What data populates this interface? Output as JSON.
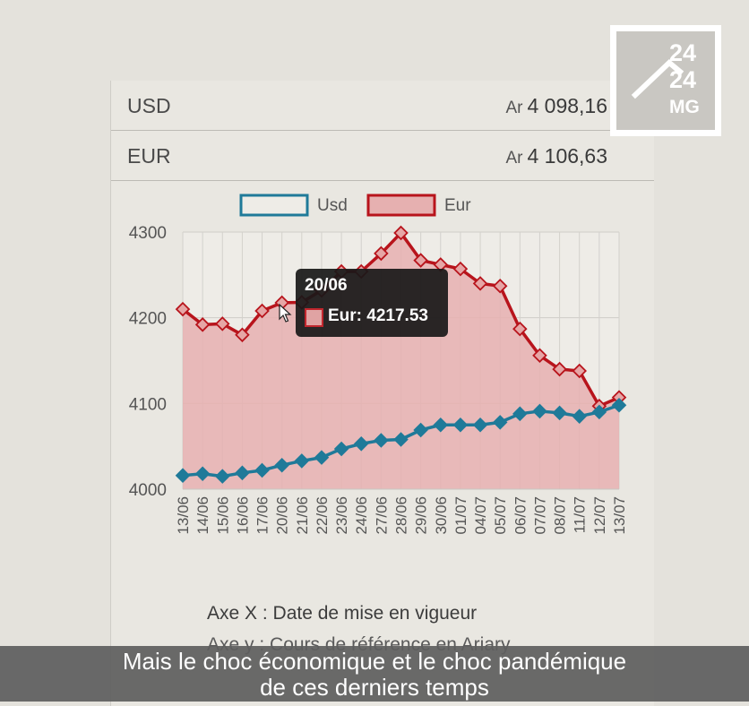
{
  "rates": [
    {
      "currency": "USD",
      "prefix": "Ar",
      "amount": "4 098,16"
    },
    {
      "currency": "EUR",
      "prefix": "Ar",
      "amount": "4 106,63"
    }
  ],
  "chart_data": {
    "type": "area",
    "x_labels": [
      "13/06",
      "14/06",
      "15/06",
      "16/06",
      "17/06",
      "20/06",
      "21/06",
      "22/06",
      "23/06",
      "24/06",
      "27/06",
      "28/06",
      "29/06",
      "30/06",
      "01/07",
      "04/07",
      "05/07",
      "06/07",
      "07/07",
      "08/07",
      "11/07",
      "12/07",
      "13/07"
    ],
    "series": [
      {
        "name": "Usd",
        "color": "#1f7a99",
        "values": [
          4016,
          4018,
          4015,
          4019,
          4022,
          4028,
          4033,
          4037,
          4047,
          4053,
          4057,
          4058,
          4069,
          4075,
          4075,
          4075,
          4078,
          4088,
          4091,
          4089,
          4085,
          4090,
          4098
        ]
      },
      {
        "name": "Eur",
        "color": "#b8141c",
        "fill": "#e6b0b0",
        "values": [
          4210,
          4192,
          4193,
          4180,
          4208,
          4217.53,
          4218,
          4232,
          4254,
          4254,
          4275,
          4299,
          4267,
          4262,
          4257,
          4240,
          4237,
          4187,
          4156,
          4140,
          4138,
          4097,
          4107
        ]
      }
    ],
    "y_ticks": [
      4000,
      4100,
      4200,
      4300
    ],
    "ylim": [
      4000,
      4300
    ],
    "legend_position": "top",
    "tooltip": {
      "date": "20/06",
      "label": "Eur: 4217.53"
    }
  },
  "axis_notes": {
    "x": "Axe X : Date de mise en vigueur",
    "y": "Axe y : Cours de référence en Ariary"
  },
  "subtitle": {
    "line1": "Mais le choc économique et le choc pandémique",
    "line2": "de ces derniers temps"
  },
  "logo": {
    "line1": "24",
    "line2": "24",
    "line3": "MG"
  }
}
